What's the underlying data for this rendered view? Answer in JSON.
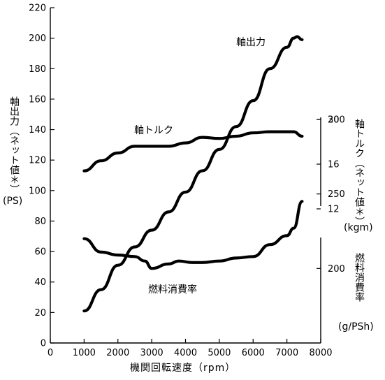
{
  "chart_data": {
    "type": "line",
    "xlabel": "機関回転速度（rpm）",
    "xlim": [
      0,
      8000
    ],
    "x_ticks": [
      0,
      1000,
      2000,
      3000,
      4000,
      5000,
      6000,
      7000,
      8000
    ],
    "axes": {
      "left": {
        "label": "軸出力（ネット値＊）",
        "unit": "(PS)",
        "lim": [
          0,
          220
        ],
        "ticks": [
          0,
          20,
          40,
          60,
          80,
          100,
          120,
          140,
          160,
          180,
          200,
          220
        ]
      },
      "right_torque": {
        "label": "軸トルク（ネット値＊）",
        "unit": "(kgm)",
        "lim": [
          0,
          30
        ],
        "ticks": [
          12,
          16,
          20
        ]
      },
      "right_fuel": {
        "label": "燃料消費率",
        "unit": "(g/PSh)",
        "lim": [
          150,
          375
        ],
        "ticks": [
          200,
          250,
          300
        ]
      }
    },
    "series": [
      {
        "name": "軸出力",
        "axis": "left",
        "x": [
          1000,
          1500,
          2000,
          2500,
          3000,
          3500,
          4000,
          4500,
          5000,
          5500,
          6000,
          6500,
          7000,
          7200,
          7300,
          7450
        ],
        "y": [
          21,
          35,
          51,
          63,
          74,
          86,
          99,
          113,
          127,
          142,
          159,
          180,
          194,
          200,
          201,
          199
        ]
      },
      {
        "name": "軸トルク",
        "axis": "right_torque",
        "x": [
          1000,
          1500,
          2000,
          2500,
          3000,
          3500,
          4000,
          4500,
          5000,
          5500,
          6000,
          6500,
          7000,
          7200,
          7450
        ],
        "y": [
          15.4,
          16.3,
          17.0,
          17.6,
          17.6,
          17.6,
          17.9,
          18.4,
          18.3,
          18.5,
          18.8,
          18.9,
          18.9,
          18.9,
          18.5
        ]
      },
      {
        "name": "燃料消費率",
        "axis": "right_fuel",
        "x": [
          1000,
          1500,
          2000,
          2500,
          2800,
          3000,
          3500,
          3800,
          4200,
          4500,
          5000,
          5500,
          6000,
          6500,
          7000,
          7200,
          7450
        ],
        "y": [
          220,
          211,
          209,
          208,
          205,
          200,
          203,
          205,
          204,
          204,
          205,
          207,
          208,
          216,
          222,
          227,
          245
        ]
      }
    ],
    "legend": "inline labels"
  }
}
